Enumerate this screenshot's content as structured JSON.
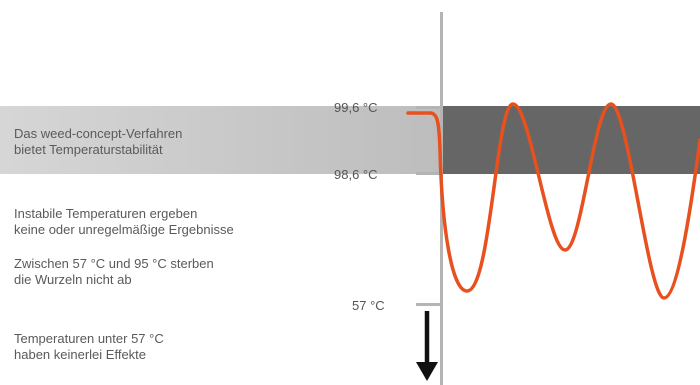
{
  "scale": {
    "upper": "99,6 °C",
    "lower_band": "98,6 °C",
    "minimum": "57 °C"
  },
  "descriptions": {
    "stable": [
      "Das weed-concept-Verfahren",
      "bietet Temperaturstabilität"
    ],
    "unstable": [
      "Instabile Temperaturen ergeben",
      "keine oder unregelmäßige Ergebnisse"
    ],
    "range": [
      "Zwischen 57 °C und 95 °C sterben",
      "die Wurzeln nicht ab"
    ],
    "below": [
      "Temperaturen unter 57 °C",
      "haben keinerlei Effekte"
    ]
  },
  "colors": {
    "curve": "#e8501e",
    "band_light": "#c8c8c8",
    "band_dark": "#666666",
    "axis": "#b4b4b4",
    "arrow": "#111111"
  }
}
